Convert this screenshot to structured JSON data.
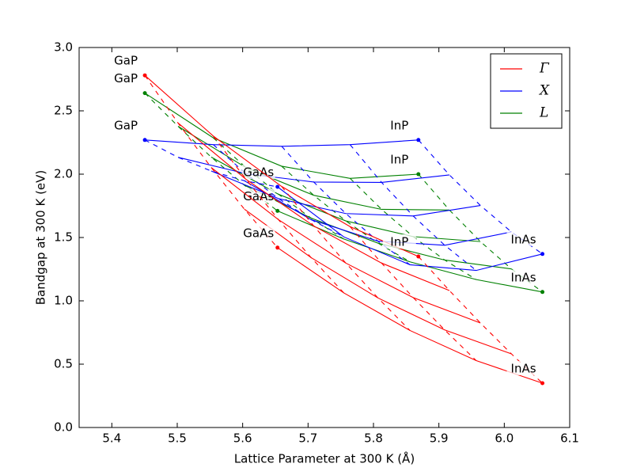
{
  "chart_data": {
    "type": "line",
    "xlabel": "Lattice Parameter at 300 K (Å)",
    "ylabel": "Bandgap at 300 K (eV)",
    "xlim": [
      5.35,
      6.1
    ],
    "ylim": [
      0,
      3.0
    ],
    "xticks": [
      5.4,
      5.5,
      5.6,
      5.7,
      5.8,
      5.9,
      {
        "value": 6,
        "label": "6.0"
      },
      6.1
    ],
    "yticks": [
      {
        "value": 0,
        "label": "0.0"
      },
      0.5,
      {
        "value": 1,
        "label": "1.0"
      },
      1.5,
      {
        "value": 2,
        "label": "2.0"
      },
      2.5,
      {
        "value": 3,
        "label": "3.0"
      }
    ],
    "legend": "upper right",
    "series": [
      {
        "name": "Γ",
        "color": "#ff0000",
        "lines": [
          {
            "dashed": false,
            "x": [
              5.8687,
              5.7642,
              5.6596,
              5.5551,
              5.4505
            ],
            "values": [
              1.35,
              1.586,
              1.903,
              2.301,
              2.78
            ]
          },
          {
            "dashed": false,
            "x": [
              5.9161,
              5.8124,
              5.7087,
              5.605,
              5.5012
            ],
            "values": [
              1.081,
              1.298,
              1.591,
              1.96,
              2.404
            ]
          },
          {
            "dashed": false,
            "x": [
              5.9635,
              5.8607,
              5.7577,
              5.6549,
              5.5519
            ],
            "values": [
              0.825,
              1.026,
              1.298,
              1.64,
              2.053
            ]
          },
          {
            "dashed": false,
            "x": [
              6.0109,
              5.9089,
              5.8068,
              5.7047,
              5.6026
            ],
            "values": [
              0.581,
              0.77,
              1.023,
              1.341,
              1.724
            ]
          },
          {
            "dashed": false,
            "x": [
              6.0583,
              5.9571,
              5.8558,
              5.7546,
              5.6533
            ],
            "values": [
              0.35,
              0.528,
              0.766,
              1.063,
              1.42
            ]
          },
          {
            "dashed": true,
            "x": [
              5.8687,
              5.9161,
              5.9635,
              6.0109,
              6.0583
            ],
            "values": [
              1.35,
              1.081,
              0.825,
              0.581,
              0.35
            ]
          },
          {
            "dashed": true,
            "x": [
              5.7642,
              5.8124,
              5.8607,
              5.9089,
              5.9571
            ],
            "values": [
              1.586,
              1.298,
              1.026,
              0.77,
              0.528
            ]
          },
          {
            "dashed": true,
            "x": [
              5.6596,
              5.7087,
              5.7577,
              5.8068,
              5.8558
            ],
            "values": [
              1.903,
              1.591,
              1.298,
              1.023,
              0.766
            ]
          },
          {
            "dashed": true,
            "x": [
              5.5551,
              5.605,
              5.6549,
              5.7047,
              5.7546
            ],
            "values": [
              2.301,
              1.96,
              1.64,
              1.341,
              1.063
            ]
          },
          {
            "dashed": true,
            "x": [
              5.4505,
              5.5012,
              5.5519,
              5.6026,
              5.6533
            ],
            "values": [
              2.78,
              2.404,
              2.053,
              1.724,
              1.42
            ]
          }
        ],
        "points": [
          {
            "label": "GaP",
            "x": 5.4505,
            "y": 2.78
          },
          {
            "label": "InP",
            "x": 5.8687,
            "y": 1.35
          },
          {
            "label": "GaAs",
            "x": 5.6533,
            "y": 1.42
          },
          {
            "label": "InAs",
            "x": 6.0583,
            "y": 0.35
          }
        ]
      },
      {
        "name": "X",
        "color": "#0000ff",
        "lines": [
          {
            "dashed": false,
            "x": [
              5.8687,
              5.7642,
              5.6596,
              5.5551,
              5.4505
            ],
            "values": [
              2.27,
              2.233,
              2.22,
              2.233,
              2.27
            ]
          },
          {
            "dashed": false,
            "x": [
              5.9161,
              5.8124,
              5.7087,
              5.605,
              5.5012
            ],
            "values": [
              1.994,
              1.935,
              1.938,
              2.004,
              2.133
            ]
          },
          {
            "dashed": false,
            "x": [
              5.9635,
              5.8607,
              5.7577,
              5.6549,
              5.5519
            ],
            "values": [
              1.753,
              1.67,
              1.689,
              1.807,
              2.025
            ]
          },
          {
            "dashed": false,
            "x": [
              6.0109,
              5.9089,
              5.8068,
              5.7047,
              5.6026
            ],
            "values": [
              1.544,
              1.439,
              1.471,
              1.641,
              1.948
            ]
          },
          {
            "dashed": false,
            "x": [
              6.0583,
              5.9571,
              5.8558,
              5.7546,
              5.6533
            ],
            "values": [
              1.37,
              1.24,
              1.285,
              1.505,
              1.9
            ]
          },
          {
            "dashed": true,
            "x": [
              5.8687,
              5.9161,
              5.9635,
              6.0109,
              6.0583
            ],
            "values": [
              2.27,
              1.994,
              1.753,
              1.544,
              1.37
            ]
          },
          {
            "dashed": true,
            "x": [
              5.7642,
              5.8124,
              5.8607,
              5.9089,
              5.9571
            ],
            "values": [
              2.233,
              1.935,
              1.67,
              1.439,
              1.24
            ]
          },
          {
            "dashed": true,
            "x": [
              5.6596,
              5.7087,
              5.7577,
              5.8068,
              5.8558
            ],
            "values": [
              2.22,
              1.938,
              1.689,
              1.471,
              1.285
            ]
          },
          {
            "dashed": true,
            "x": [
              5.5551,
              5.605,
              5.6549,
              5.7047,
              5.7546
            ],
            "values": [
              2.233,
              2.004,
              1.807,
              1.641,
              1.505
            ]
          },
          {
            "dashed": true,
            "x": [
              5.4505,
              5.5012,
              5.5519,
              5.6026,
              5.6533
            ],
            "values": [
              2.27,
              2.133,
              2.025,
              1.948,
              1.9
            ]
          }
        ],
        "points": [
          {
            "label": "GaP",
            "x": 5.4505,
            "y": 2.27
          },
          {
            "label": "InP",
            "x": 5.8687,
            "y": 2.27
          },
          {
            "label": "GaAs",
            "x": 5.6533,
            "y": 1.9
          },
          {
            "label": "InAs",
            "x": 6.0583,
            "y": 1.37
          }
        ]
      },
      {
        "name": "L",
        "color": "#008000",
        "lines": [
          {
            "dashed": false,
            "x": [
              5.8687,
              5.7642,
              5.6596,
              5.5551,
              5.4505
            ],
            "values": [
              2.0,
              1.967,
              2.063,
              2.287,
              2.64
            ]
          },
          {
            "dashed": false,
            "x": [
              5.9161,
              5.8124,
              5.7087,
              5.605,
              5.5012
            ],
            "values": [
              1.717,
              1.722,
              1.833,
              2.052,
              2.378
            ]
          },
          {
            "dashed": false,
            "x": [
              5.9635,
              5.8607,
              5.7577,
              5.6549,
              5.5519
            ],
            "values": [
              1.468,
              1.507,
              1.631,
              1.841,
              2.135
            ]
          },
          {
            "dashed": false,
            "x": [
              6.0109,
              5.9089,
              5.8068,
              5.7047,
              5.6026
            ],
            "values": [
              1.252,
              1.322,
              1.456,
              1.653,
              1.913
            ]
          },
          {
            "dashed": false,
            "x": [
              6.0583,
              5.9571,
              5.8558,
              5.7546,
              5.6533
            ],
            "values": [
              1.07,
              1.168,
              1.308,
              1.488,
              1.71
            ]
          },
          {
            "dashed": true,
            "x": [
              5.8687,
              5.9161,
              5.9635,
              6.0109,
              6.0583
            ],
            "values": [
              2.0,
              1.717,
              1.468,
              1.252,
              1.07
            ]
          },
          {
            "dashed": true,
            "x": [
              5.7642,
              5.8124,
              5.8607,
              5.9089,
              5.9571
            ],
            "values": [
              1.967,
              1.722,
              1.507,
              1.322,
              1.168
            ]
          },
          {
            "dashed": true,
            "x": [
              5.6596,
              5.7087,
              5.7577,
              5.8068,
              5.8558
            ],
            "values": [
              2.063,
              1.833,
              1.631,
              1.456,
              1.308
            ]
          },
          {
            "dashed": true,
            "x": [
              5.5551,
              5.605,
              5.6549,
              5.7047,
              5.7546
            ],
            "values": [
              2.287,
              2.052,
              1.841,
              1.653,
              1.488
            ]
          },
          {
            "dashed": true,
            "x": [
              5.4505,
              5.5012,
              5.5519,
              5.6026,
              5.6533
            ],
            "values": [
              2.64,
              2.378,
              2.135,
              1.913,
              1.71
            ]
          }
        ],
        "points": [
          {
            "label": "GaP",
            "x": 5.4505,
            "y": 2.64
          },
          {
            "label": "InP",
            "x": 5.8687,
            "y": 2.0
          },
          {
            "label": "GaAs",
            "x": 5.6533,
            "y": 1.71
          },
          {
            "label": "InAs",
            "x": 6.0583,
            "y": 1.07
          }
        ]
      }
    ]
  }
}
